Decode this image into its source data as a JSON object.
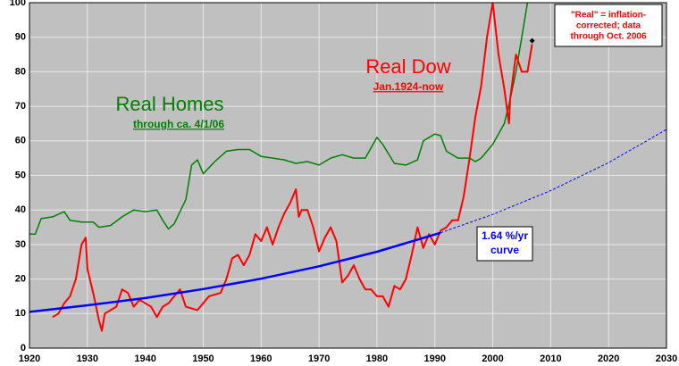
{
  "chart_data": {
    "type": "line",
    "xlim": [
      1920,
      2030
    ],
    "xticks": [
      1920,
      1930,
      1940,
      1950,
      1960,
      1970,
      1980,
      1990,
      2000,
      2010,
      2020,
      2030
    ],
    "ylim": [
      0,
      100
    ],
    "yticks": [
      0,
      10,
      20,
      30,
      40,
      50,
      60,
      70,
      80,
      90,
      100
    ],
    "grid": true,
    "background": "#c0c0c0",
    "series": [
      {
        "color": "#008000",
        "width": 1.5,
        "x": [
          1920,
          1921,
          1922,
          1924,
          1926,
          1927,
          1929,
          1931,
          1932,
          1934,
          1936,
          1938,
          1940,
          1942,
          1943,
          1944,
          1945,
          1947,
          1948,
          1949,
          1950,
          1952,
          1954,
          1956,
          1958,
          1960,
          1962,
          1964,
          1966,
          1968,
          1970,
          1972,
          1974,
          1976,
          1978,
          1979,
          1980,
          1981,
          1983,
          1985,
          1987,
          1988,
          1990,
          1991,
          1992,
          1994,
          1996,
          1997,
          1998,
          2000,
          2002,
          2003,
          2004,
          2005,
          2006
        ],
        "values": [
          33,
          33,
          37.5,
          38,
          39.5,
          37,
          36.5,
          36.5,
          35,
          35.5,
          38,
          40,
          39.5,
          40,
          37,
          34.5,
          36,
          43,
          53,
          54.5,
          50.5,
          54,
          57,
          57.5,
          57.5,
          55.5,
          55,
          54.5,
          53.5,
          54,
          53,
          55,
          56,
          55,
          55,
          58,
          61,
          59,
          53.5,
          53,
          54.5,
          60,
          62,
          61.5,
          57,
          55,
          55,
          54,
          55,
          59,
          65,
          72,
          80,
          90,
          100
        ]
      },
      {
        "color": "#ff0000",
        "width": 2,
        "x": [
          1924,
          1925,
          1926,
          1927,
          1928,
          1929,
          1929.7,
          1930,
          1931,
          1932,
          1932.5,
          1933,
          1935,
          1936,
          1937,
          1938,
          1939,
          1940,
          1941,
          1942,
          1943,
          1944,
          1945,
          1946,
          1947,
          1949,
          1950,
          1951,
          1953,
          1954,
          1955,
          1956,
          1957,
          1958,
          1959,
          1960,
          1961,
          1962,
          1963,
          1964,
          1965,
          1966,
          1966.5,
          1967,
          1968,
          1969,
          1970,
          1971,
          1972,
          1973,
          1974,
          1975,
          1976,
          1977,
          1978,
          1979,
          1980,
          1981,
          1982,
          1983,
          1984,
          1985,
          1986,
          1987,
          1988,
          1989,
          1990,
          1991,
          1992,
          1993,
          1994,
          1995,
          1996,
          1997,
          1998,
          1999,
          2000,
          2001,
          2002,
          2002.8,
          2003,
          2004,
          2005,
          2006,
          2006.8
        ],
        "values": [
          9,
          10,
          13,
          15,
          20,
          30,
          32,
          23,
          16,
          8,
          5,
          10,
          12,
          17,
          16,
          12,
          14,
          13,
          12,
          9,
          12,
          13,
          15,
          17,
          12,
          11,
          13,
          15,
          16,
          20,
          26,
          27,
          24,
          27,
          33,
          31,
          35,
          30,
          35,
          39,
          42,
          46,
          38,
          40,
          40,
          35,
          28,
          32,
          35,
          31,
          19,
          21,
          24,
          20,
          17,
          17,
          15,
          15,
          12,
          18,
          17,
          20,
          27,
          35,
          29,
          33,
          30,
          34,
          35,
          37,
          37,
          44,
          55,
          67,
          76,
          90,
          100,
          85,
          75,
          65,
          72,
          85,
          80,
          80,
          88
        ]
      },
      {
        "color": "#0000ff",
        "width": 2.5,
        "x": [
          1920,
          1930,
          1940,
          1950,
          1960,
          1970,
          1980,
          1990,
          1991
        ],
        "values": [
          10.5,
          12.4,
          14.5,
          17.1,
          20.1,
          23.7,
          27.9,
          32.9,
          33.4
        ]
      },
      {
        "color": "#0000ff",
        "width": 1,
        "dash": "3,2",
        "x": [
          1991,
          2000,
          2010,
          2020,
          2030
        ],
        "values": [
          33.4,
          38.7,
          45.6,
          53.7,
          63.3
        ]
      }
    ],
    "marker": {
      "x": 2006.8,
      "value": 89,
      "color": "#000000"
    },
    "annotations": [
      {
        "text": "Real Homes",
        "color": "#008000"
      },
      {
        "text": "through ca. 4/1/06",
        "color": "#008000"
      },
      {
        "text": "Real Dow",
        "color": "#ff0000"
      },
      {
        "text": "Jan.1924-now",
        "color": "#ff0000"
      },
      {
        "text": "1.64 %/yr",
        "color": "#0000ff"
      },
      {
        "text": "curve",
        "color": "#0000ff"
      },
      {
        "text": "\"Real\" = inflation-",
        "color": "#ff0000"
      },
      {
        "text": "corrected; data",
        "color": "#ff0000"
      },
      {
        "text": "through Oct. 2006",
        "color": "#ff0000"
      }
    ]
  }
}
